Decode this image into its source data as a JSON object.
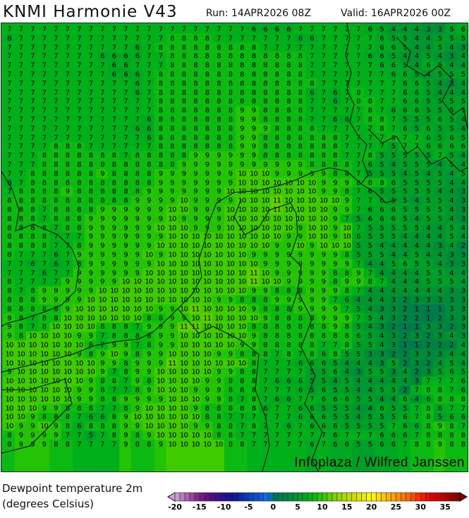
{
  "header": {
    "title": "KNMI Harmonie V43",
    "run": "Run: 14APR2026 08Z",
    "valid": "Valid: 16APR2026 00Z"
  },
  "map": {
    "credit": "Infoplaza / Wilfred Janssen",
    "grid_values": [
      "7 7 7 7 7 7 7 7 7 7 7 7 7 7 7 7 7 7 7 7 7 6 6 6 6 7 7 7 7 7 7 6 5 4 4 4 3 3 5 6",
      "6 7 7 7 7 7 7 7 7 7 7 7 7 7 8 8 8 8 7 7 7 7 7 7 7 6 6 7 7 7 7 7 6 5 5 4 4 5 5 5",
      "7 7 7 7 7 7 7 7 7 7 7 6 7 8 8 8 8 8 8 8 8 8 7 7 7 7 7 7 7 7 7 7 6 6 5 4 4 5 4 3",
      "7 7 7 7 7 7 7 7 6 6 6 6 7 7 8 8 8 8 8 8 8 8 8 8 8 8 7 7 7 7 7 6 6 5 4 4 5 4 3 4",
      "7 7 7 7 7 7 7 7 7 6 6 7 7 7 8 8 8 8 8 8 8 8 8 8 8 8 7 7 7 7 7 7 6 6 5 4 6 5 4 4",
      "7 7 7 7 7 7 7 7 7 6 6 6 7 8 8 8 8 8 8 8 8 8 8 8 8 8 7 7 7 7 7 7 7 6 6 5 4 5 5 5",
      "7 7 7 7 7 7 7 7 7 7 7 6 7 8 8 8 8 8 8 8 8 8 8 8 8 8 8 7 7 7 7 7 7 7 6 6 5 4 3 4",
      "7 7 7 7 7 7 7 7 7 7 7 6 7 8 8 8 8 8 8 8 8 8 8 8 8 8 6 7 6 7 8 7 7 7 6 6 5 4 4 4",
      "7 7 7 7 7 7 7 7 7 7 7 7 7 8 8 8 8 8 8 8 8 8 8 8 8 8 7 7 6 7 8 8 7 7 6 6 5 5 5 5",
      "7 7 7 7 7 7 7 7 7 7 7 7 7 8 8 8 8 8 8 8 9 9 8 8 8 8 7 7 7 7 7 8 7 6 6 6 5 5 5 5",
      "7 7 7 7 7 7 7 7 7 7 7 7 6 8 8 8 8 8 8 8 9 9 8 8 8 8 7 7 6 6 7 8 8 7 5 5 5 6 5 4",
      "7 7 7 7 7 7 7 7 7 7 7 6 6 8 8 8 8 8 8 8 9 9 9 8 8 8 8 7 7 7 7 7 8 7 6 5 6 5 5 4",
      "7 7 7 7 7 7 7 7 7 7 7 7 6 8 8 8 8 8 8 8 9 9 8 8 8 8 8 8 8 7 7 7 7 8 7 7 6 5 6 5",
      "7 7 7 7 8 8 8 7 7 7 7 7 7 8 8 8 8 8 8 8 9 9 8 8 8 8 8 8 8 7 7 7 7 5 7 7 6 6 6 6",
      "7 7 7 8 8 8 8 8 8 8 7 8 8 8 8 8 9 9 9 9 9 9 8 8 8 8 8 8 8 7 7 8 5 5 5 5 5 7 5 4",
      "7 7 7 8 8 8 8 8 8 8 8 8 8 8 8 9 9 9 9 9 9 9 9 9 9 9 8 8 8 8 7 6 5 4 5 5 5 4 5 4",
      "7 7 8 8 8 8 8 8 9 8 8 8 8 9 9 9 9 9 9 9 10 10 10 9 9 9 9 9 8 8 7 5 5 5 4 5 4 5 4 5",
      "6 7 8 8 8 8 8 8 8 8 8 8 8 9 9 9 9 9 9 9 10 10 10 10 10 10 10 9 9 9 8 8 8 6 5 5 5 5 4 4",
      "7 8 8 8 8 9 8 8 8 8 8 8 9 9 9 9 9 9 9 10 10 10 10 10 10 10 10 9 9 8 7 6 5 5 5 5 5 4 4 3",
      "8 8 8 8 8 8 8 8 8 8 8 9 9 9 9 10 9 9 9 9 10 10 10 11 10 10 10 10 10 9 7 7 6 5 5 4 5 5 4 3",
      "8 8 8 7 8 8 8 8 9 9 9 9 9 9 10 10 9 9 9 10 10 10 10 11 10 10 10 10 9 9 7 6 6 6 5 5 5 5 4 3",
      "8 8 8 7 8 8 8 9 9 9 9 9 9 9 10 9 9 9 9 10 10 10 10 10 10 10 10 10 9 7 5 6 6 6 5 4 5 5 4 3",
      "8 8 8 8 7 8 8 9 9 9 9 9 9 10 10 10 9 9 9 10 10 10 10 10 10 9 10 10 9 10 7 5 5 5 5 5 4 4 5 4",
      "8 8 8 8 7 7 7 9 9 9 9 9 9 9 10 10 10 10 10 10 10 10 10 10 9 9 10 10 9 10 6 5 5 5 4 4 4 4 5 4",
      "8 8 8 8 7 7 8 9 9 9 9 9 9 10 10 10 10 10 10 10 10 10 10 9 9 10 9 10 10 10 5 5 4 4 4 4 4 3 4 2",
      "8 7 7 7 6 7 9 9 9 9 9 9 10 9 10 10 10 10 10 10 10 9 9 9 9 9 9 9 9 8 5 5 5 4 4 5 4 4 3 3",
      "7 7 6 7 6 7 8 9 9 9 9 9 9 10 10 10 10 10 10 10 10 10 9 9 9 9 9 9 9 9 7 4 4 5 6 5 5 4 3 3",
      "7 7 7 6 7 7 9 9 9 9 9 9 10 10 10 10 10 10 10 10 10 11 10 9 9 9 9 9 8 8 9 7 4 4 4 4 5 5 4 4",
      "8 7 7 7 7 9 9 9 9 9 10 10 10 10 10 10 10 10 10 10 10 11 10 10 9 9 9 9 8 9 9 8 7 4 4 4 5 5 5 4",
      "8 7 8 9 9 9 9 9 10 10 10 10 10 10 10 10 10 10 10 10 10 9 9 8 8 8 9 9 9 8 7 4 4 4 4 4 4 4 3 3",
      "8 8 8 9 9 9 9 10 10 10 10 10 10 10 10 10 10 10 9 9 8 8 8 9 9 9 9 9 7 6 4 4 4 3 2 3 3 3 3 3",
      "8 8 8 8 8 9 10 10 10 10 10 10 10 9 9 10 11 10 10 10 10 9 8 8 8 9 9 9 9 7 5 4 3 3 2 1 1 1 3 3",
      "9 8 7 8 8 10 10 10 10 10 10 10 8 8 9 9 10 11 10 10 10 10 9 8 8 8 8 9 9 9 7 5 4 3 2 2 1 2 3 3",
      "9 8 7 8 10 10 10 10 8 8 8 7 9 9 9 11 11 10 10 10 10 8 8 8 8 8 8 8 9 8 5 4 3 2 1 1 3 3 2 3",
      "9 8 10 10 10 10 9 9 7 8 8 8 8 9 9 10 10 10 10 10 10 9 8 8 8 8 8 8 8 8 6 5 4 3 2 3 2 3 4 3",
      "10 10 10 10 10 10 10 8 7 9 9 7 8 9 9 10 10 10 10 10 9 9 8 8 8 8 8 7 7 8 5 5 4 3 1 1 2 2 2 4",
      "10 10 10 10 10 10 9 8 9 10 9 8 9 9 10 10 10 10 9 9 8 8 8 7 8 7 8 6 8 5 5 3 3 2 2 3 3 3 4 4",
      "10 10 10 10 10 10 10 10 9 9 8 9 9 9 11 10 10 10 10 10 10 8 7 7 7 6 6 6 5 4 4 4 3 5 2 3 2 4 5 4",
      "9 10 10 10 10 10 10 10 9 7 8 9 9 10 10 10 10 10 9 9 8 8 7 7 7 7 5 5 6 4 3 5 5 3 4 2 3 5 6 5",
      "10 10 10 10 10 10 10 9 8 8 7 9 8 10 10 10 10 9 9 8 8 8 7 6 6 6 5 5 4 5 4 4 4 4 4 3 7 7 7 6",
      "10 10 10 10 10 10 9 9 8 7 7 8 9 10 10 10 9 9 9 8 8 8 7 7 7 6 5 6 5 5 4 4 5 5 2 7 8 8 7 6",
      "10 10 10 10 10 10 9 9 8 8 9 9 9 9 10 10 10 9 9 8 7 8 7 6 6 7 7 6 6 6 5 5 4 4 6 4 6 8 8 8",
      "10 10 10 9 9 8 8 8 7 7 8 9 10 10 10 10 9 8 8 8 8 8 6 7 7 6 6 5 5 5 4 4 6 5 5 7 8 6 7 7",
      "10 10 9 8 8 8 7 6 6 8 9 10 10 10 10 10 10 8 8 7 7 7 7 7 7 6 6 6 5 5 4 5 5 5 6 7 8 5 6 6",
      "10 9 9 10 9 8 6 8 8 8 9 9 10 10 10 10 9 9 8 8 7 8 7 7 6 7 6 6 6 5 5 5 5 7 6 6 8 9 8 7",
      "8 9 9 9 9 7 7 5 7 8 9 8 9 10 10 10 10 10 8 8 7 7 7 7 7 7 7 7 6 7 7 7 6 6 6 7 8 8 8 8",
      "8 9 9 9 8 8 7 7 7 7 9 8 8 9 10 10 10 10 10 8 8 7 7 7 7 7 6 7 6 6 5 5 6 6 7 8 8 9 8 8"
    ]
  },
  "legend": {
    "variable": "Dewpoint temperature 2m",
    "units": "(degrees Celsius)",
    "min": -20,
    "max": 38,
    "step": 1,
    "tick_labels": [
      "-20",
      "-15",
      "-10",
      "-5",
      "0",
      "5",
      "10",
      "15",
      "20",
      "25",
      "30",
      "35"
    ],
    "color_stops": [
      [
        -20,
        "#d0a8d8"
      ],
      [
        -17,
        "#a050aa"
      ],
      [
        -15,
        "#801a80"
      ],
      [
        -13,
        "#5a0a8a"
      ],
      [
        -10,
        "#20108c"
      ],
      [
        -8,
        "#0a1496"
      ],
      [
        -5,
        "#0a3cc0"
      ],
      [
        -2,
        "#0a60d8"
      ],
      [
        -1,
        "#0a78f0"
      ],
      [
        0,
        "#006e58"
      ],
      [
        2,
        "#007c48"
      ],
      [
        4,
        "#009034"
      ],
      [
        6,
        "#00a424"
      ],
      [
        8,
        "#00b418"
      ],
      [
        10,
        "#30c800"
      ],
      [
        12,
        "#70d000"
      ],
      [
        14,
        "#a0d800"
      ],
      [
        16,
        "#c8dc00"
      ],
      [
        18,
        "#e6e600"
      ],
      [
        20,
        "#ffff00"
      ],
      [
        22,
        "#ffd200"
      ],
      [
        24,
        "#ffaa00"
      ],
      [
        26,
        "#ff8200"
      ],
      [
        28,
        "#ff5a00"
      ],
      [
        30,
        "#ff1e00"
      ],
      [
        32,
        "#e60000"
      ],
      [
        34,
        "#c80000"
      ],
      [
        36,
        "#a00000"
      ],
      [
        38,
        "#800000"
      ]
    ]
  }
}
